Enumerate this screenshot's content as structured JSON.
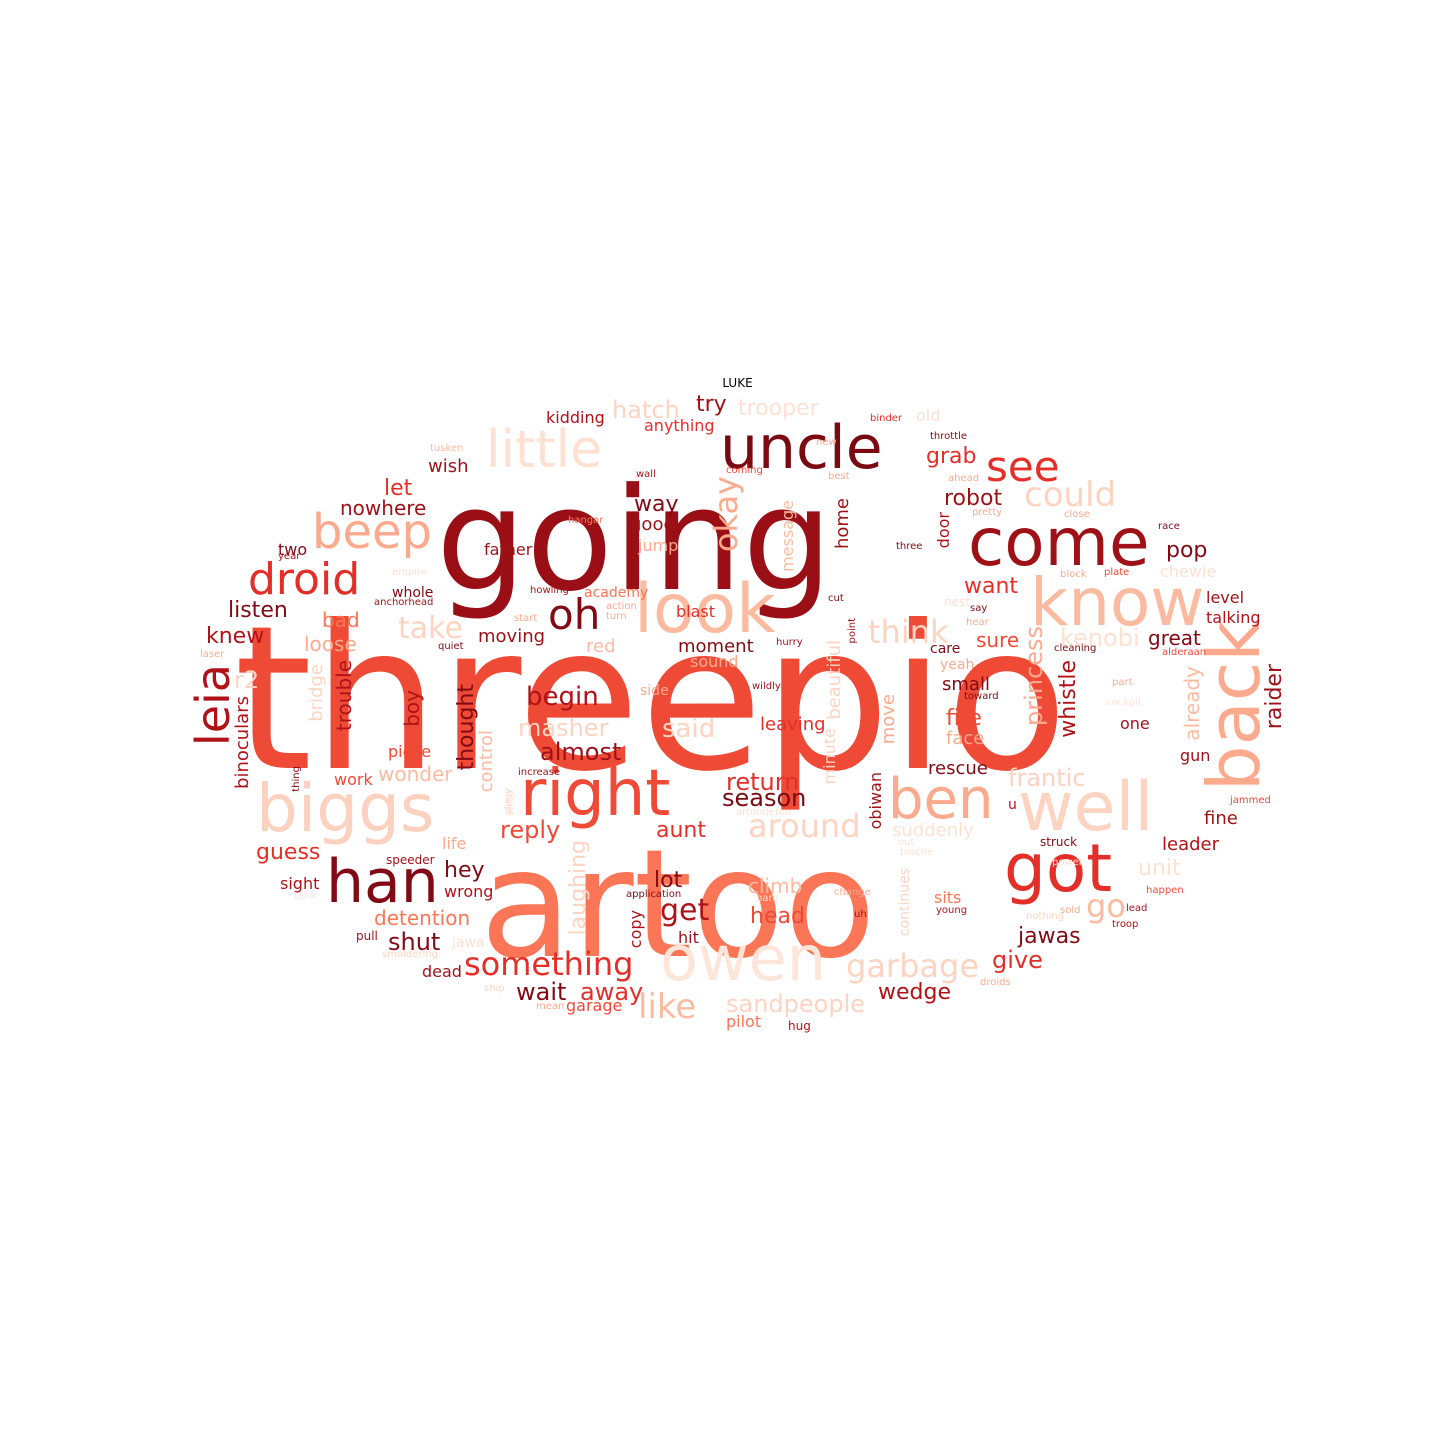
{
  "title": "LUKE",
  "words": [
    {
      "text": "threepio",
      "color": "#ef4a35"
    },
    {
      "text": "going",
      "color": "#9a0f16"
    },
    {
      "text": "artoo",
      "color": "#fb7656"
    },
    {
      "text": "uncle",
      "color": "#7a0912"
    },
    {
      "text": "come",
      "color": "#9e1117"
    },
    {
      "text": "look",
      "color": "#fcbba0"
    },
    {
      "text": "know",
      "color": "#fcbba0"
    },
    {
      "text": "back",
      "color": "#fcaa8e"
    },
    {
      "text": "right",
      "color": "#ef4a35"
    },
    {
      "text": "biggs",
      "color": "#fdd1bf"
    },
    {
      "text": "well",
      "color": "#fdd4c2"
    },
    {
      "text": "ben",
      "color": "#fcaa8e"
    },
    {
      "text": "got",
      "color": "#e32f27"
    },
    {
      "text": "owen",
      "color": "#fee5d9"
    },
    {
      "text": "han",
      "color": "#820a14"
    },
    {
      "text": "little",
      "color": "#fee1d3"
    },
    {
      "text": "beep",
      "color": "#fcaa8e"
    },
    {
      "text": "droid",
      "color": "#e32f27"
    },
    {
      "text": "oh",
      "color": "#820a14"
    },
    {
      "text": "see",
      "color": "#e32f27"
    },
    {
      "text": "leia",
      "color": "#b01217"
    },
    {
      "text": "could",
      "color": "#fdd4c2"
    },
    {
      "text": "okay",
      "color": "#fcaa8e"
    },
    {
      "text": "something",
      "color": "#e32f27"
    },
    {
      "text": "garbage",
      "color": "#fdd4c2"
    },
    {
      "text": "like",
      "color": "#fcbba0"
    },
    {
      "text": "take",
      "color": "#fdd4c2"
    },
    {
      "text": "think",
      "color": "#fdd4c2"
    },
    {
      "text": "get",
      "color": "#b01217"
    },
    {
      "text": "go",
      "color": "#fcbba0"
    },
    {
      "text": "kenobi",
      "color": "#fee1d3"
    },
    {
      "text": "around",
      "color": "#fdd4c2"
    },
    {
      "text": "beautiful",
      "color": "#fdd4c2"
    },
    {
      "text": "princess",
      "color": "#fcaa8e"
    },
    {
      "text": "whistle",
      "color": "#b01217"
    },
    {
      "text": "raider",
      "color": "#9e1117"
    },
    {
      "text": "already",
      "color": "#fcbba0"
    },
    {
      "text": "frantic",
      "color": "#fdd1bf"
    },
    {
      "text": "season",
      "color": "#7a0912"
    },
    {
      "text": "return",
      "color": "#e32f27"
    },
    {
      "text": "wait",
      "color": "#820a14"
    },
    {
      "text": "away",
      "color": "#e32f27"
    },
    {
      "text": "wedge",
      "color": "#b01217"
    },
    {
      "text": "give",
      "color": "#e32f27"
    },
    {
      "text": "jawas",
      "color": "#820a14"
    },
    {
      "text": "shut",
      "color": "#820a14"
    },
    {
      "text": "almost",
      "color": "#9e1117"
    },
    {
      "text": "begin",
      "color": "#b01217"
    },
    {
      "text": "thought",
      "color": "#820a14"
    },
    {
      "text": "trouble",
      "color": "#b01217"
    },
    {
      "text": "binoculars",
      "color": "#b01217"
    },
    {
      "text": "bridge",
      "color": "#fdd4c2"
    },
    {
      "text": "boy",
      "color": "#b01217"
    },
    {
      "text": "masher",
      "color": "#fdd4c2"
    },
    {
      "text": "said",
      "color": "#fdd4c2"
    },
    {
      "text": "wonder",
      "color": "#fcbba0"
    },
    {
      "text": "control",
      "color": "#fcbba0"
    },
    {
      "text": "reply",
      "color": "#ef4a35"
    },
    {
      "text": "guess",
      "color": "#e32f27"
    },
    {
      "text": "hey",
      "color": "#820a14"
    },
    {
      "text": "wrong",
      "color": "#b01217"
    },
    {
      "text": "detention",
      "color": "#fb7656"
    },
    {
      "text": "lot",
      "color": "#820a14"
    },
    {
      "text": "climb",
      "color": "#fcbba0"
    },
    {
      "text": "head",
      "color": "#ef4a35"
    },
    {
      "text": "aunt",
      "color": "#e32f27"
    },
    {
      "text": "laughing",
      "color": "#fdd4c2"
    },
    {
      "text": "copy",
      "color": "#b01217"
    },
    {
      "text": "hit",
      "color": "#9e1117"
    },
    {
      "text": "sandpeople",
      "color": "#fdd4c2"
    },
    {
      "text": "pilot",
      "color": "#fb7656"
    },
    {
      "text": "hug",
      "color": "#b01217"
    },
    {
      "text": "garage",
      "color": "#ef4a35"
    },
    {
      "text": "mean",
      "color": "#fcaa8e"
    },
    {
      "text": "ship",
      "color": "#fdd4c2"
    },
    {
      "text": "dead",
      "color": "#9e1117"
    },
    {
      "text": "pull",
      "color": "#9e1117"
    },
    {
      "text": "smoldering",
      "color": "#fdd4c2"
    },
    {
      "text": "sight",
      "color": "#b01217"
    },
    {
      "text": "tank",
      "color": "#fee5d9"
    },
    {
      "text": "speeder",
      "color": "#9e1117"
    },
    {
      "text": "life",
      "color": "#fcaa8e"
    },
    {
      "text": "work",
      "color": "#ef4a35"
    },
    {
      "text": "piece",
      "color": "#ef4a35"
    },
    {
      "text": "thing",
      "color": "#820a14"
    },
    {
      "text": "r2",
      "color": "#fdd4c2"
    },
    {
      "text": "loose",
      "color": "#fcaa8e"
    },
    {
      "text": "knew",
      "color": "#b01217"
    },
    {
      "text": "bad",
      "color": "#fb7656"
    },
    {
      "text": "listen",
      "color": "#820a14"
    },
    {
      "text": "moving",
      "color": "#9e1117"
    },
    {
      "text": "red",
      "color": "#fcbba0"
    },
    {
      "text": "moment",
      "color": "#820a14"
    },
    {
      "text": "sound",
      "color": "#fcaa8e"
    },
    {
      "text": "blast",
      "color": "#e32f27"
    },
    {
      "text": "jump",
      "color": "#fcaa8e"
    },
    {
      "text": "good",
      "color": "#9e1117"
    },
    {
      "text": "way",
      "color": "#820a14"
    },
    {
      "text": "hatch",
      "color": "#fdd4c2"
    },
    {
      "text": "trooper",
      "color": "#fee1d3"
    },
    {
      "text": "try",
      "color": "#9e1117"
    },
    {
      "text": "kidding",
      "color": "#b01217"
    },
    {
      "text": "anything",
      "color": "#e32f27"
    },
    {
      "text": "wish",
      "color": "#9e1117"
    },
    {
      "text": "let",
      "color": "#e32f27"
    },
    {
      "text": "nowhere",
      "color": "#9e1117"
    },
    {
      "text": "two",
      "color": "#820a14"
    },
    {
      "text": "father",
      "color": "#9e1117"
    },
    {
      "text": "whole",
      "color": "#820a14"
    },
    {
      "text": "academy",
      "color": "#fb7656"
    },
    {
      "text": "action",
      "color": "#fcaa8e"
    },
    {
      "text": "turn",
      "color": "#fcaa8e"
    },
    {
      "text": "howling",
      "color": "#b01217"
    },
    {
      "text": "anchorhead",
      "color": "#9e1117"
    },
    {
      "text": "empire",
      "color": "#fee1d3"
    },
    {
      "text": "year",
      "color": "#b01217"
    },
    {
      "text": "laser",
      "color": "#fcaa8e"
    },
    {
      "text": "quiet",
      "color": "#820a14"
    },
    {
      "text": "start",
      "color": "#fcaa8e"
    },
    {
      "text": "increase",
      "color": "#9e1117"
    },
    {
      "text": "sixty",
      "color": "#fee1d3"
    },
    {
      "text": "application",
      "color": "#820a14"
    },
    {
      "text": "hangar",
      "color": "#fb7656"
    },
    {
      "text": "wall",
      "color": "#b01217"
    },
    {
      "text": "coming",
      "color": "#ef4a35"
    },
    {
      "text": "message",
      "color": "#fcbba0"
    },
    {
      "text": "home",
      "color": "#9e1117"
    },
    {
      "text": "door",
      "color": "#b01217"
    },
    {
      "text": "robot",
      "color": "#9e1117"
    },
    {
      "text": "grab",
      "color": "#e32f27"
    },
    {
      "text": "want",
      "color": "#e32f27"
    },
    {
      "text": "sure",
      "color": "#ef4a35"
    },
    {
      "text": "pop",
      "color": "#820a14"
    },
    {
      "text": "great",
      "color": "#820a14"
    },
    {
      "text": "chewie",
      "color": "#fee1d3"
    },
    {
      "text": "level",
      "color": "#9e1117"
    },
    {
      "text": "talking",
      "color": "#b01217"
    },
    {
      "text": "leaving",
      "color": "#e32f27"
    },
    {
      "text": "fire",
      "color": "#ef4a35"
    },
    {
      "text": "face",
      "color": "#fcaa8e"
    },
    {
      "text": "small",
      "color": "#820a14"
    },
    {
      "text": "yeah",
      "color": "#fcaa8e"
    },
    {
      "text": "care",
      "color": "#820a14"
    },
    {
      "text": "rescue",
      "color": "#820a14"
    },
    {
      "text": "move",
      "color": "#fcaa8e"
    },
    {
      "text": "minute",
      "color": "#fdd4c2"
    },
    {
      "text": "obiwan",
      "color": "#9e1117"
    },
    {
      "text": "suddenly",
      "color": "#fee1d3"
    },
    {
      "text": "wildly",
      "color": "#9e1117"
    },
    {
      "text": "side",
      "color": "#fcaa8e"
    },
    {
      "text": "cut",
      "color": "#820a14"
    },
    {
      "text": "hurry",
      "color": "#9e1117"
    },
    {
      "text": "point",
      "color": "#9e1117"
    },
    {
      "text": "artoodetoo",
      "color": "#fee1d3"
    },
    {
      "text": "unit",
      "color": "#fee1d3"
    },
    {
      "text": "sits",
      "color": "#fb7656"
    },
    {
      "text": "young",
      "color": "#b01217"
    },
    {
      "text": "change",
      "color": "#fcaa8e"
    },
    {
      "text": "uh",
      "color": "#9e1117"
    },
    {
      "text": "continues",
      "color": "#fdd4c2"
    },
    {
      "text": "nothing",
      "color": "#fdd4c2"
    },
    {
      "text": "sold",
      "color": "#fcaa8e"
    },
    {
      "text": "droids",
      "color": "#fcaa8e"
    },
    {
      "text": "lead",
      "color": "#9e1117"
    },
    {
      "text": "troop",
      "color": "#b01217"
    },
    {
      "text": "happen",
      "color": "#ef4a35"
    },
    {
      "text": "leader",
      "color": "#b01217"
    },
    {
      "text": "fine",
      "color": "#9e1117"
    },
    {
      "text": "jammed",
      "color": "#ef4a35"
    },
    {
      "text": "struck",
      "color": "#820a14"
    },
    {
      "text": "u",
      "color": "#b01217"
    },
    {
      "text": "gun",
      "color": "#9e1117"
    },
    {
      "text": "one",
      "color": "#9e1117"
    },
    {
      "text": "cockpit",
      "color": "#fee5d9"
    },
    {
      "text": "part",
      "color": "#fcaa8e"
    },
    {
      "text": "alderaan",
      "color": "#ef4a35"
    },
    {
      "text": "cleaning",
      "color": "#820a14"
    },
    {
      "text": "toward",
      "color": "#820a14"
    },
    {
      "text": "hear",
      "color": "#fcaa8e"
    },
    {
      "text": "say",
      "color": "#820a14"
    },
    {
      "text": "block",
      "color": "#fcaa8e"
    },
    {
      "text": "plate",
      "color": "#ef4a35"
    },
    {
      "text": "race",
      "color": "#820a14"
    },
    {
      "text": "close",
      "color": "#fcaa8e"
    },
    {
      "text": "pretty",
      "color": "#fcaa8e"
    },
    {
      "text": "three",
      "color": "#820a14"
    },
    {
      "text": "ahead",
      "color": "#fcaa8e"
    },
    {
      "text": "best",
      "color": "#fcaa8e"
    },
    {
      "text": "new",
      "color": "#fcaa8e"
    },
    {
      "text": "throttle",
      "color": "#820a14"
    },
    {
      "text": "binder",
      "color": "#e32f27"
    },
    {
      "text": "old",
      "color": "#fee1d3"
    },
    {
      "text": "tusken",
      "color": "#fcbba0"
    },
    {
      "text": "hard",
      "color": "#fee1d3"
    },
    {
      "text": "slimy",
      "color": "#fdd4c2"
    },
    {
      "text": "jawa",
      "color": "#fee1d3"
    },
    {
      "text": "out",
      "color": "#fee1d3"
    },
    {
      "text": "tosche",
      "color": "#fee1d3"
    },
    {
      "text": "power",
      "color": "#fee1d3"
    },
    {
      "text": "nest",
      "color": "#fee1d3"
    }
  ]
}
